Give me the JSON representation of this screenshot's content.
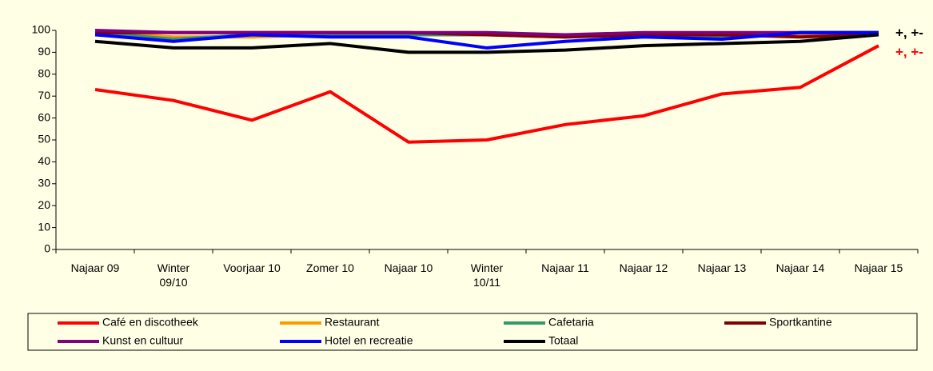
{
  "chart_data": {
    "type": "line",
    "categories": [
      "Najaar 09",
      "Winter\n09/10",
      "Voorjaar 10",
      "Zomer 10",
      "Najaar 10",
      "Winter\n10/11",
      "Najaar 11",
      "Najaar 12",
      "Najaar 13",
      "Najaar 14",
      "Najaar 15"
    ],
    "series": [
      {
        "name": "Café en discotheek",
        "color": "#ff0000",
        "values": [
          73,
          68,
          59,
          72,
          49,
          50,
          57,
          61,
          71,
          74,
          93
        ]
      },
      {
        "name": "Restaurant",
        "color": "#ff9900",
        "values": [
          99,
          97,
          97,
          98,
          98,
          98,
          98,
          98,
          98,
          98,
          98
        ]
      },
      {
        "name": "Cafetaria",
        "color": "#339966",
        "values": [
          99,
          96,
          98,
          98,
          98,
          98,
          97,
          98,
          97,
          99,
          99
        ]
      },
      {
        "name": "Sportkantine",
        "color": "#800000",
        "values": [
          99,
          99,
          99,
          99,
          99,
          98,
          97,
          98,
          98,
          97,
          98
        ]
      },
      {
        "name": "Kunst en cultuur",
        "color": "#800080",
        "values": [
          100,
          99,
          99,
          99,
          99,
          99,
          98,
          99,
          99,
          99,
          99
        ]
      },
      {
        "name": "Hotel en recreatie",
        "color": "#0000ff",
        "values": [
          98,
          95,
          98,
          97,
          97,
          92,
          95,
          97,
          96,
          99,
          99
        ]
      },
      {
        "name": "Totaal",
        "color": "#000000",
        "values": [
          95,
          92,
          92,
          94,
          90,
          90,
          91,
          93,
          94,
          95,
          98
        ]
      }
    ],
    "ylim": [
      0,
      100
    ],
    "yticks": [
      0,
      10,
      20,
      30,
      40,
      50,
      60,
      70,
      80,
      90,
      100
    ],
    "annotations": [
      {
        "text": "+, +-",
        "color": "#000000"
      },
      {
        "text": "+, +-",
        "color": "#ff0000"
      }
    ]
  }
}
